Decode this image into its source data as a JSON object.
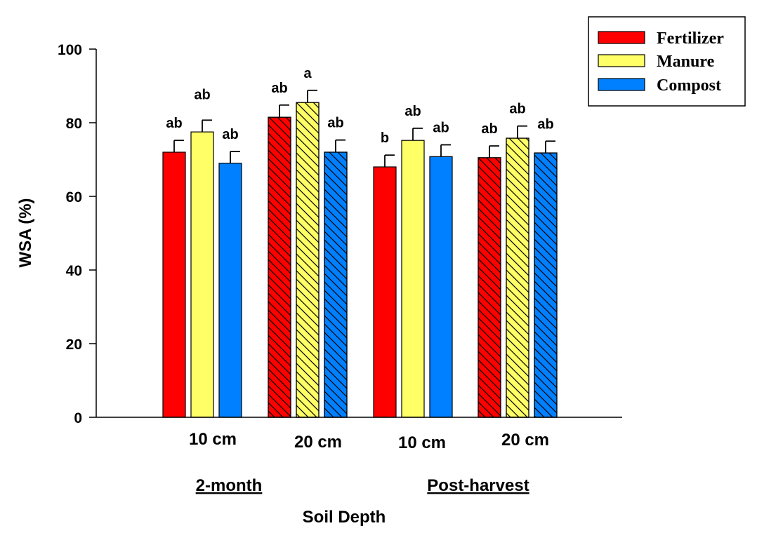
{
  "chart_data": {
    "type": "bar",
    "ylabel": "WSA (%)",
    "xlabel": "Soil Depth",
    "ylim": [
      0,
      100
    ],
    "yticks": [
      "0",
      "20",
      "40",
      "60",
      "80",
      "100"
    ],
    "groups": [
      {
        "label": "10 cm",
        "period": "2-month",
        "hatched": false
      },
      {
        "label": "20 cm",
        "period": "2-month",
        "hatched": true
      },
      {
        "label": "10 cm",
        "period": "Post-harvest",
        "hatched": false
      },
      {
        "label": "20 cm",
        "period": "Post-harvest",
        "hatched": true
      }
    ],
    "periods": [
      "2-month",
      "Post-harvest"
    ],
    "series": [
      {
        "name": "Fertilizer",
        "color": "#ff0000",
        "values": [
          72,
          81.5,
          68,
          70.5
        ],
        "errors": [
          3.2,
          3.3,
          3.2,
          3.2
        ],
        "labels": [
          "ab",
          "ab",
          "b",
          "ab"
        ]
      },
      {
        "name": "Manure",
        "color": "#ffff66",
        "values": [
          77.5,
          85.5,
          75.2,
          75.8
        ],
        "errors": [
          3.2,
          3.3,
          3.3,
          3.3
        ],
        "labels": [
          "ab",
          "a",
          "ab",
          "ab"
        ]
      },
      {
        "name": "Compost",
        "color": "#0080ff",
        "values": [
          69,
          72,
          70.8,
          71.8
        ],
        "errors": [
          3.2,
          3.3,
          3.2,
          3.2
        ],
        "labels": [
          "ab",
          "ab",
          "ab",
          "ab"
        ]
      }
    ],
    "legend_position": "top-right",
    "grid": false
  }
}
